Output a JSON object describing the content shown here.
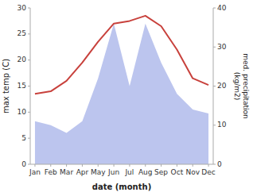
{
  "chart_data": {
    "type": "line",
    "xlabel": "date (month)",
    "ylabel": "max temp (C)",
    "y2label": "med. precipitation\n(kg/m2)",
    "categories": [
      "Jan",
      "Feb",
      "Mar",
      "Apr",
      "May",
      "Jun",
      "Jul",
      "Aug",
      "Sep",
      "Oct",
      "Nov",
      "Dec"
    ],
    "series": [
      {
        "type": "area",
        "axis": "y2",
        "color": "#bcc5ee",
        "values": [
          11,
          10,
          8,
          11,
          22,
          36,
          20,
          36,
          26,
          18,
          14,
          13
        ]
      },
      {
        "type": "line",
        "color": "#c8413c",
        "values": [
          13.5,
          14.0,
          16.0,
          19.5,
          23.5,
          27.0,
          27.5,
          28.5,
          26.5,
          22.0,
          16.5,
          15.2
        ]
      }
    ],
    "ylim": [
      0,
      30
    ],
    "yticks": [
      0,
      5,
      10,
      15,
      20,
      25,
      30
    ],
    "y2lim": [
      0,
      40
    ],
    "y2ticks": [
      0,
      10,
      20,
      30,
      40
    ],
    "grid": false
  }
}
